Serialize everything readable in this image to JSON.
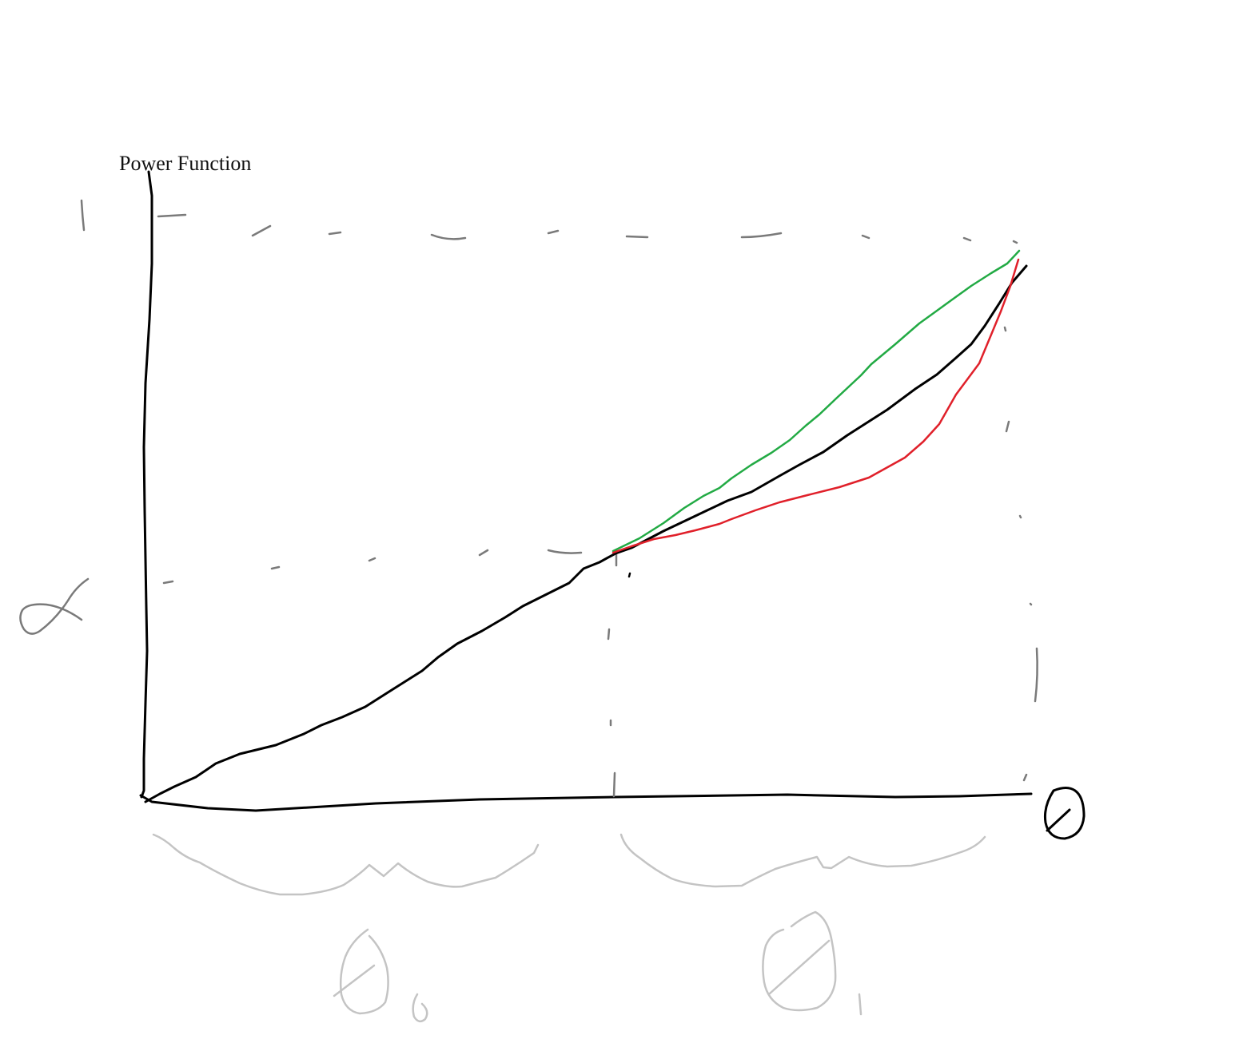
{
  "title": "Power Function",
  "colors": {
    "axis": "#000000",
    "guide": "#7a7a7a",
    "annotation": "#c4c4c4",
    "baseline_curve": "#000000",
    "upper_curve": "#22aa44",
    "lower_curve": "#e0202a"
  },
  "handwritten_symbols": {
    "y_axis_top": "1",
    "y_axis_mark": "α",
    "x_axis_end": "θ",
    "region_left": "θ0",
    "region_right": "θ1"
  }
}
